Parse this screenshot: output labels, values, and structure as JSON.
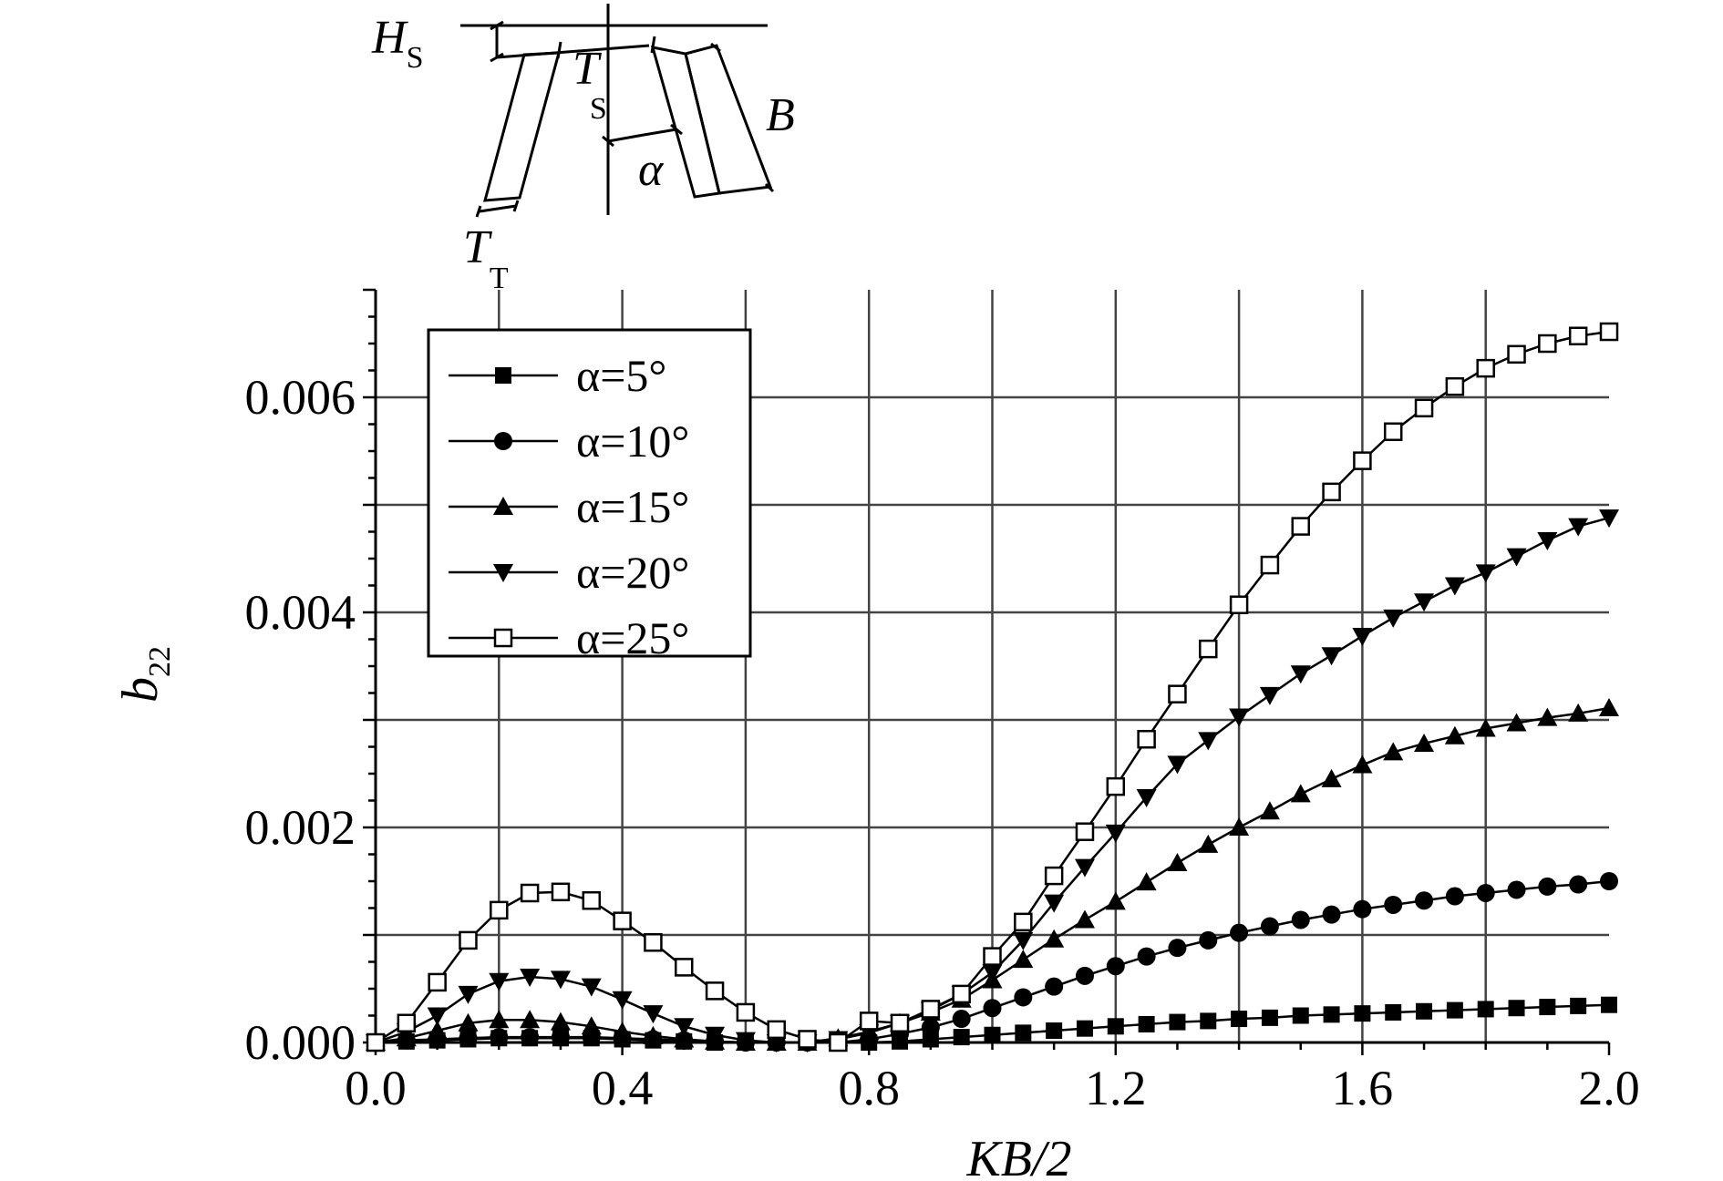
{
  "chart_data": {
    "type": "line",
    "xlabel": "KB/2",
    "ylabel": "b",
    "ylabel_subscript": "22",
    "xlim": [
      0.0,
      2.0
    ],
    "ylim": [
      0.0,
      0.007
    ],
    "xticks": [
      "0.0",
      "0.4",
      "0.8",
      "1.2",
      "1.6",
      "2.0"
    ],
    "yticks": [
      "0.000",
      "0.002",
      "0.004",
      "0.006"
    ],
    "grid": true,
    "legend_position": "top-left",
    "x": [
      0.0,
      0.05,
      0.1,
      0.15,
      0.2,
      0.25,
      0.3,
      0.35,
      0.4,
      0.45,
      0.5,
      0.55,
      0.6,
      0.65,
      0.7,
      0.75,
      0.8,
      0.85,
      0.9,
      0.95,
      1.0,
      1.05,
      1.1,
      1.15,
      1.2,
      1.25,
      1.3,
      1.35,
      1.4,
      1.45,
      1.5,
      1.55,
      1.6,
      1.65,
      1.7,
      1.75,
      1.8,
      1.85,
      1.9,
      1.95,
      2.0
    ],
    "series": [
      {
        "name": "α=5°",
        "marker": "filled-square",
        "values": [
          0.0,
          1e-05,
          2e-05,
          3e-05,
          4e-05,
          4e-05,
          4e-05,
          4e-05,
          3e-05,
          2e-05,
          1e-05,
          0.0,
          0.0,
          0.0,
          0.0,
          0.0,
          0.0,
          1e-05,
          3e-05,
          5e-05,
          7e-05,
          9e-05,
          0.00011,
          0.00013,
          0.00015,
          0.00017,
          0.00019,
          0.0002,
          0.00022,
          0.00023,
          0.00025,
          0.00026,
          0.00027,
          0.00028,
          0.00029,
          0.0003,
          0.00031,
          0.00032,
          0.00033,
          0.00034,
          0.00035
        ]
      },
      {
        "name": "α=10°",
        "marker": "filled-circle",
        "values": [
          0.0,
          2e-05,
          3e-05,
          4e-05,
          5e-05,
          5e-05,
          5e-05,
          5e-05,
          4e-05,
          3e-05,
          2e-05,
          1e-05,
          0.0,
          0.0,
          0.0,
          0.0,
          3e-05,
          8e-05,
          0.00014,
          0.00022,
          0.00032,
          0.00042,
          0.00052,
          0.00062,
          0.00071,
          0.0008,
          0.00088,
          0.00095,
          0.00102,
          0.00108,
          0.00114,
          0.00119,
          0.00124,
          0.00128,
          0.00132,
          0.00136,
          0.00139,
          0.00142,
          0.00145,
          0.00147,
          0.0015
        ]
      },
      {
        "name": "α=15°",
        "marker": "filled-triangle-up",
        "values": [
          0.0,
          4e-05,
          0.00011,
          0.00018,
          0.00021,
          0.00021,
          0.00019,
          0.00015,
          0.0001,
          6e-05,
          3e-05,
          1e-05,
          0.0,
          0.0,
          0.0,
          4e-05,
          0.0001,
          0.00018,
          0.00028,
          0.0004,
          0.00058,
          0.00077,
          0.00096,
          0.00114,
          0.00131,
          0.00149,
          0.00167,
          0.00184,
          0.002,
          0.00215,
          0.00231,
          0.00245,
          0.00258,
          0.0027,
          0.00278,
          0.00285,
          0.00292,
          0.00297,
          0.00302,
          0.00306,
          0.00311
        ]
      },
      {
        "name": "α=20°",
        "marker": "filled-triangle-down",
        "values": [
          0.0,
          0.0001,
          0.00025,
          0.00045,
          0.00057,
          0.00061,
          0.00059,
          0.00052,
          0.0004,
          0.00027,
          0.00015,
          7e-05,
          2e-05,
          0.0,
          0.0,
          3e-05,
          9e-05,
          0.00018,
          0.0003,
          0.00045,
          0.00065,
          0.00095,
          0.0013,
          0.00163,
          0.00195,
          0.00228,
          0.00259,
          0.00281,
          0.00303,
          0.00323,
          0.00343,
          0.0036,
          0.00378,
          0.00395,
          0.0041,
          0.00425,
          0.00437,
          0.00452,
          0.00467,
          0.0048,
          0.00488
        ]
      },
      {
        "name": "α=25°",
        "marker": "open-square",
        "values": [
          0.0,
          0.00018,
          0.00056,
          0.00095,
          0.00123,
          0.00139,
          0.0014,
          0.00132,
          0.00113,
          0.00093,
          0.0007,
          0.00048,
          0.00028,
          0.00012,
          3e-05,
          0.0,
          0.0002,
          0.00018,
          0.00031,
          0.00045,
          0.0008,
          0.00112,
          0.00155,
          0.00196,
          0.00238,
          0.00282,
          0.00324,
          0.00366,
          0.00407,
          0.00444,
          0.0048,
          0.00512,
          0.00541,
          0.00568,
          0.0059,
          0.0061,
          0.00627,
          0.0064,
          0.0065,
          0.00657,
          0.00661
        ]
      }
    ]
  },
  "inset": {
    "labels": {
      "hs": "H",
      "hs_sub": "S",
      "ts": "T",
      "ts_sub": "S",
      "tt": "T",
      "tt_sub": "T",
      "b": "B",
      "alpha": "α"
    }
  }
}
